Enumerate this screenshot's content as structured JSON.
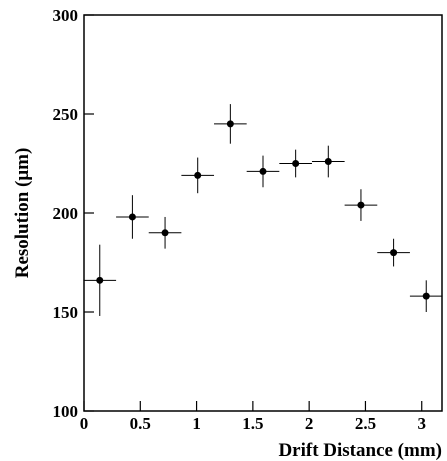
{
  "chart_data": {
    "type": "scatter",
    "x_label": "Drift Distance (mm)",
    "y_label": "Resolution (μm)",
    "xlim": [
      0,
      3.18
    ],
    "ylim": [
      100,
      300
    ],
    "xticks": [
      0,
      0.5,
      1,
      1.5,
      2,
      2.5,
      3
    ],
    "yticks": [
      100,
      150,
      200,
      250,
      300
    ],
    "series": [
      {
        "color": "#000000",
        "x": [
          0.14,
          0.43,
          0.72,
          1.01,
          1.3,
          1.59,
          1.88,
          2.17,
          2.46,
          2.75,
          3.04
        ],
        "values": [
          166,
          198,
          190,
          219,
          245,
          221,
          225,
          226,
          204,
          180,
          158
        ],
        "xerr": [
          0.145,
          0.145,
          0.145,
          0.145,
          0.145,
          0.145,
          0.145,
          0.145,
          0.145,
          0.145,
          0.145
        ],
        "yerr": [
          18,
          11,
          8,
          9,
          10,
          8,
          7,
          8,
          8,
          7,
          8
        ]
      }
    ]
  }
}
